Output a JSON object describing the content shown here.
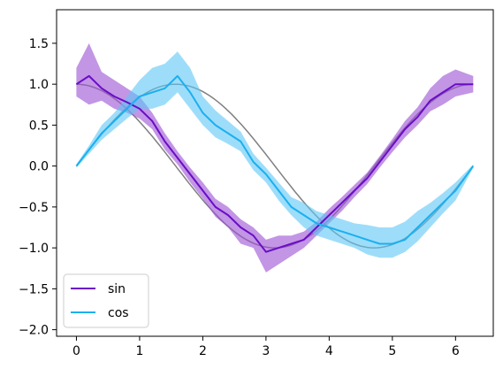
{
  "chart_data": {
    "type": "line",
    "title": "",
    "xlabel": "",
    "ylabel": "",
    "xlim": [
      -0.314,
      6.597
    ],
    "ylim": [
      -2.08,
      1.91
    ],
    "grid": false,
    "legend_position": "bottom-left",
    "xticks": [
      0,
      1,
      2,
      3,
      4,
      5,
      6
    ],
    "yticks": [
      -2.0,
      -1.5,
      -1.0,
      -0.5,
      0.0,
      0.5,
      1.0,
      1.5
    ],
    "xtick_labels": [
      "0",
      "1",
      "2",
      "3",
      "4",
      "5",
      "6"
    ],
    "ytick_labels": [
      "−2.0",
      "−1.5",
      "−1.0",
      "−0.5",
      "0.0",
      "0.5",
      "1.0",
      "1.5"
    ],
    "reference_color": "#808080",
    "x": [
      0.0,
      0.2,
      0.4,
      0.6,
      0.8,
      1.0,
      1.2,
      1.4,
      1.6,
      1.8,
      2.0,
      2.2,
      2.4,
      2.6,
      2.8,
      3.0,
      3.2,
      3.4,
      3.6,
      3.8,
      4.0,
      4.2,
      4.4,
      4.6,
      4.8,
      5.0,
      5.2,
      5.4,
      5.6,
      5.8,
      6.0,
      6.28
    ],
    "series": [
      {
        "name": "sin",
        "color": "#6a0dc6",
        "fill": "#9b4fd3",
        "values": [
          1.0,
          1.1,
          0.95,
          0.85,
          0.78,
          0.7,
          0.55,
          0.3,
          0.1,
          -0.1,
          -0.3,
          -0.5,
          -0.6,
          -0.75,
          -0.85,
          -1.05,
          -1.0,
          -0.95,
          -0.9,
          -0.75,
          -0.6,
          -0.45,
          -0.3,
          -0.15,
          0.05,
          0.25,
          0.45,
          0.6,
          0.8,
          0.9,
          1.0,
          1.0
        ],
        "upper": [
          1.2,
          1.5,
          1.15,
          1.05,
          0.95,
          0.85,
          0.65,
          0.4,
          0.18,
          -0.02,
          -0.2,
          -0.4,
          -0.5,
          -0.65,
          -0.75,
          -0.9,
          -0.85,
          -0.85,
          -0.8,
          -0.68,
          -0.52,
          -0.38,
          -0.23,
          -0.08,
          0.12,
          0.33,
          0.55,
          0.72,
          0.95,
          1.1,
          1.18,
          1.1
        ],
        "lower": [
          0.85,
          0.75,
          0.8,
          0.7,
          0.65,
          0.58,
          0.45,
          0.2,
          0.02,
          -0.2,
          -0.4,
          -0.62,
          -0.75,
          -0.95,
          -1.0,
          -1.3,
          -1.2,
          -1.1,
          -1.0,
          -0.85,
          -0.7,
          -0.55,
          -0.38,
          -0.22,
          -0.02,
          0.17,
          0.35,
          0.5,
          0.67,
          0.75,
          0.85,
          0.9
        ]
      },
      {
        "name": "cos",
        "color": "#1ab0f0",
        "fill": "#5ec6f5",
        "values": [
          0.0,
          0.2,
          0.4,
          0.55,
          0.7,
          0.85,
          0.9,
          0.95,
          1.1,
          0.9,
          0.65,
          0.5,
          0.4,
          0.3,
          0.05,
          -0.1,
          -0.3,
          -0.5,
          -0.6,
          -0.7,
          -0.75,
          -0.8,
          -0.85,
          -0.9,
          -0.95,
          -0.95,
          -0.9,
          -0.75,
          -0.6,
          -0.45,
          -0.3,
          0.0
        ],
        "upper": [
          0.02,
          0.25,
          0.5,
          0.65,
          0.85,
          1.05,
          1.2,
          1.25,
          1.4,
          1.2,
          0.85,
          0.68,
          0.55,
          0.42,
          0.15,
          -0.02,
          -0.2,
          -0.38,
          -0.45,
          -0.55,
          -0.6,
          -0.65,
          -0.7,
          -0.72,
          -0.75,
          -0.75,
          -0.68,
          -0.55,
          -0.45,
          -0.33,
          -0.2,
          0.02
        ],
        "lower": [
          -0.02,
          0.15,
          0.32,
          0.45,
          0.58,
          0.7,
          0.7,
          0.75,
          0.9,
          0.7,
          0.5,
          0.35,
          0.27,
          0.18,
          -0.05,
          -0.2,
          -0.42,
          -0.6,
          -0.75,
          -0.85,
          -0.9,
          -0.95,
          -1.0,
          -1.08,
          -1.12,
          -1.12,
          -1.05,
          -0.92,
          -0.75,
          -0.58,
          -0.42,
          -0.02
        ]
      }
    ]
  }
}
